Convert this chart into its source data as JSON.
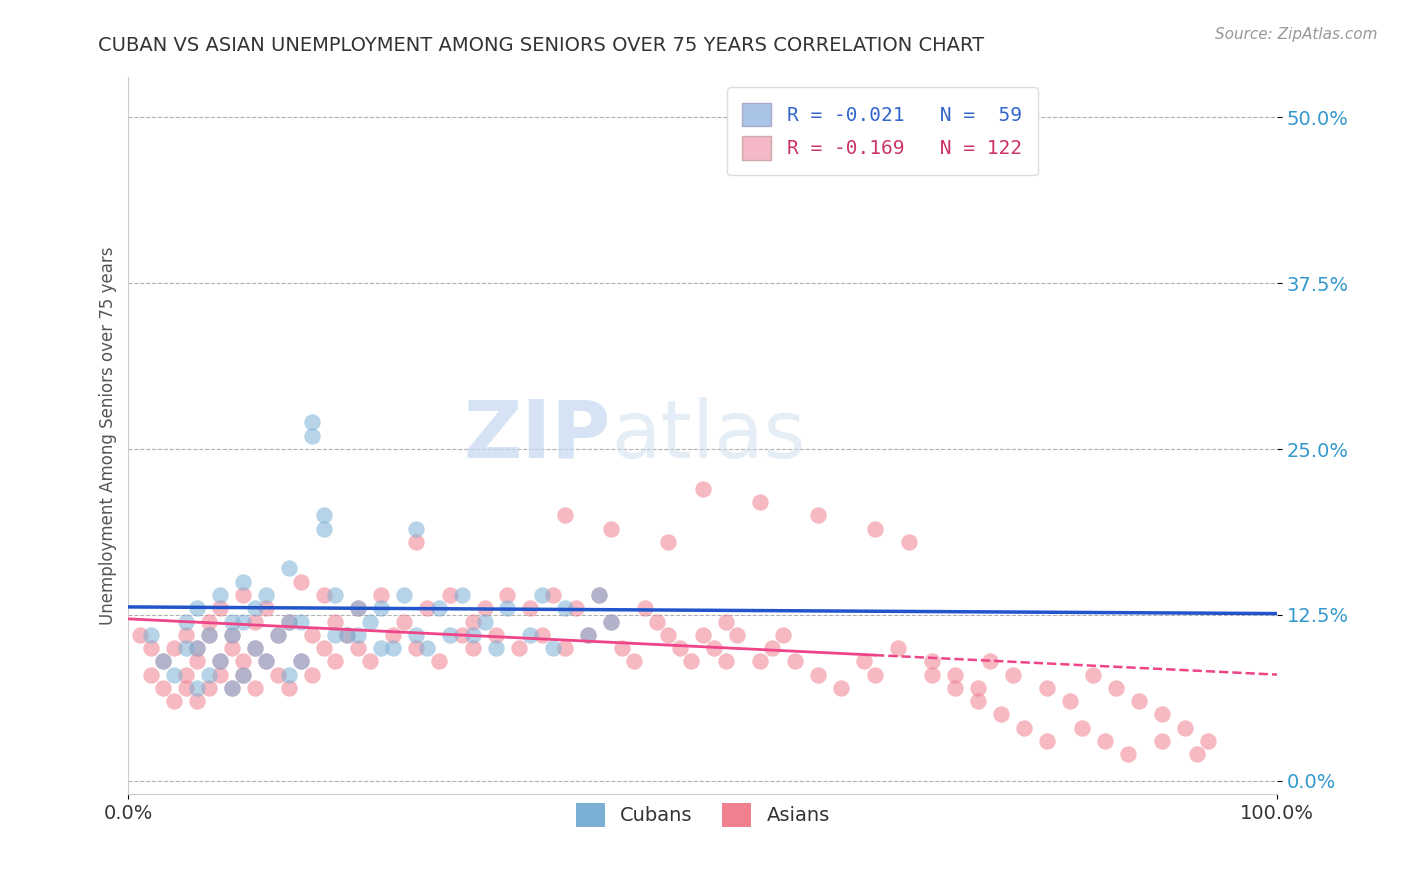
{
  "title": "CUBAN VS ASIAN UNEMPLOYMENT AMONG SENIORS OVER 75 YEARS CORRELATION CHART",
  "source": "Source: ZipAtlas.com",
  "ylabel": "Unemployment Among Seniors over 75 years",
  "ytick_values": [
    0.0,
    12.5,
    25.0,
    37.5,
    50.0
  ],
  "xlim": [
    0,
    100
  ],
  "ylim": [
    -1,
    53
  ],
  "cubans_color": "#7bafd4",
  "asians_color": "#f08090",
  "cubans_line_color": "#2255cc",
  "asians_line_color": "#ee4488",
  "background_color": "#ffffff",
  "grid_color": "#b0b0b0",
  "title_color": "#333333",
  "watermark_zip": "ZIP",
  "watermark_atlas": "atlas",
  "cubans_R": -0.021,
  "cubans_N": 59,
  "asians_R": -0.169,
  "asians_N": 122,
  "legend_blue_color": "#aac4e8",
  "legend_pink_color": "#f5b8c8",
  "legend_text_blue": "#3366cc",
  "legend_text_pink": "#cc3366",
  "ytick_color": "#3399cc",
  "source_color": "#999999",
  "cubans_intercept": 13.1,
  "cubans_slope": -0.005,
  "asians_intercept": 12.2,
  "asians_slope": -0.042,
  "asians_line_solid_end": 65,
  "cubans_x": [
    2,
    3,
    4,
    5,
    5,
    6,
    6,
    6,
    7,
    7,
    8,
    8,
    9,
    9,
    9,
    10,
    10,
    10,
    11,
    11,
    12,
    12,
    13,
    14,
    14,
    14,
    15,
    15,
    16,
    16,
    17,
    17,
    18,
    18,
    19,
    20,
    20,
    21,
    22,
    22,
    23,
    24,
    25,
    25,
    26,
    27,
    28,
    29,
    30,
    31,
    32,
    33,
    35,
    36,
    37,
    38,
    40,
    41,
    42
  ],
  "cubans_y": [
    11,
    9,
    8,
    10,
    12,
    7,
    13,
    10,
    8,
    11,
    9,
    14,
    7,
    11,
    12,
    8,
    12,
    15,
    10,
    13,
    9,
    14,
    11,
    8,
    16,
    12,
    9,
    12,
    26,
    27,
    20,
    19,
    11,
    14,
    11,
    13,
    11,
    12,
    10,
    13,
    10,
    14,
    11,
    19,
    10,
    13,
    11,
    14,
    11,
    12,
    10,
    13,
    11,
    14,
    10,
    13,
    11,
    14,
    12
  ],
  "asians_x": [
    1,
    2,
    2,
    3,
    3,
    4,
    4,
    5,
    5,
    5,
    6,
    6,
    6,
    7,
    7,
    7,
    8,
    8,
    8,
    9,
    9,
    9,
    10,
    10,
    10,
    11,
    11,
    11,
    12,
    12,
    13,
    13,
    14,
    14,
    15,
    15,
    16,
    16,
    17,
    17,
    18,
    18,
    19,
    20,
    20,
    21,
    22,
    23,
    24,
    25,
    25,
    26,
    27,
    28,
    29,
    30,
    30,
    31,
    32,
    33,
    34,
    35,
    36,
    37,
    38,
    39,
    40,
    41,
    42,
    43,
    44,
    45,
    46,
    47,
    48,
    49,
    50,
    51,
    52,
    53,
    55,
    56,
    57,
    58,
    60,
    62,
    64,
    65,
    67,
    70,
    72,
    74,
    75,
    77,
    80,
    82,
    84,
    86,
    88,
    90,
    92,
    94,
    50,
    55,
    60,
    65,
    68,
    70,
    72,
    74,
    76,
    78,
    80,
    83,
    85,
    87,
    90,
    93,
    38,
    42,
    47,
    52
  ],
  "asians_y": [
    11,
    8,
    10,
    7,
    9,
    6,
    10,
    8,
    11,
    7,
    9,
    6,
    10,
    7,
    11,
    12,
    8,
    9,
    13,
    7,
    10,
    11,
    8,
    9,
    14,
    7,
    10,
    12,
    9,
    13,
    8,
    11,
    7,
    12,
    9,
    15,
    8,
    11,
    10,
    14,
    9,
    12,
    11,
    13,
    10,
    9,
    14,
    11,
    12,
    18,
    10,
    13,
    9,
    14,
    11,
    12,
    10,
    13,
    11,
    14,
    10,
    13,
    11,
    14,
    10,
    13,
    11,
    14,
    12,
    10,
    9,
    13,
    12,
    11,
    10,
    9,
    11,
    10,
    12,
    11,
    9,
    10,
    11,
    9,
    8,
    7,
    9,
    8,
    10,
    9,
    8,
    7,
    9,
    8,
    7,
    6,
    8,
    7,
    6,
    5,
    4,
    3,
    22,
    21,
    20,
    19,
    18,
    8,
    7,
    6,
    5,
    4,
    3,
    4,
    3,
    2,
    3,
    2,
    20,
    19,
    18,
    9
  ]
}
